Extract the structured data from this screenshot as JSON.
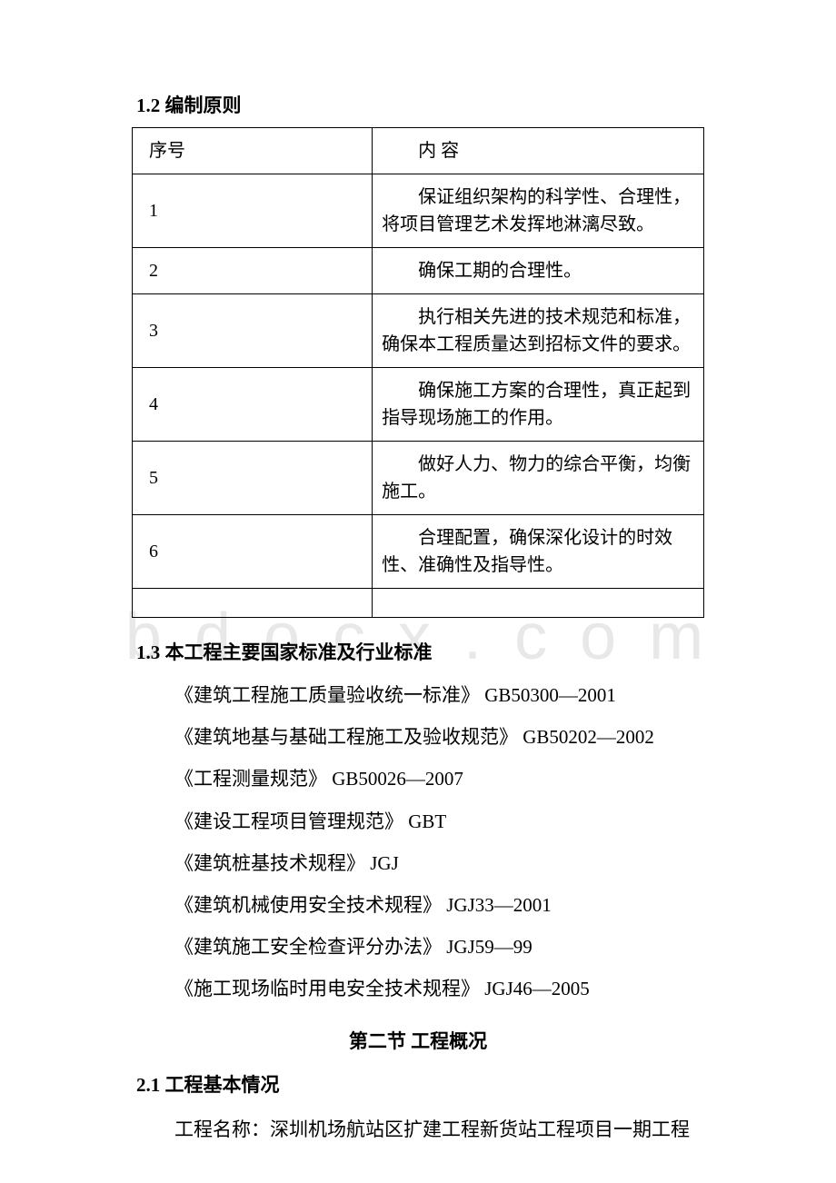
{
  "watermark": "b d o c x . c o m",
  "section12": {
    "heading": "1.2 编制原则",
    "tableHeader": {
      "col1": "序号",
      "col2": "内 容"
    },
    "rows": [
      {
        "num": "1",
        "content": "保证组织架构的科学性、合理性，将项目管理艺术发挥地淋漓尽致。"
      },
      {
        "num": "2",
        "content": "确保工期的合理性。"
      },
      {
        "num": "3",
        "content": "执行相关先进的技术规范和标准，确保本工程质量达到招标文件的要求。"
      },
      {
        "num": "4",
        "content": "确保施工方案的合理性，真正起到指导现场施工的作用。"
      },
      {
        "num": "5",
        "content": "做好人力、物力的综合平衡，均衡施工。"
      },
      {
        "num": "6",
        "content": "合理配置，确保深化设计的时效性、准确性及指导性。"
      }
    ]
  },
  "section13": {
    "heading": "1.3 本工程主要国家标准及行业标准",
    "standards": [
      "《建筑工程施工质量验收统一标准》 GB50300—2001",
      "《建筑地基与基础工程施工及验收规范》 GB50202—2002",
      "《工程测量规范》 GB50026—2007",
      "《建设工程项目管理规范》 GBT",
      "《建筑桩基技术规程》 JGJ",
      "《建筑机械使用安全技术规程》 JGJ33—2001",
      "《建筑施工安全检查评分办法》 JGJ59—99",
      "《施工现场临时用电安全技术规程》 JGJ46—2005"
    ]
  },
  "section2": {
    "title": "第二节 工程概况",
    "sub21": {
      "heading": "2.1 工程基本情况",
      "text": "工程名称：深圳机场航站区扩建工程新货站工程项目一期工程"
    }
  }
}
